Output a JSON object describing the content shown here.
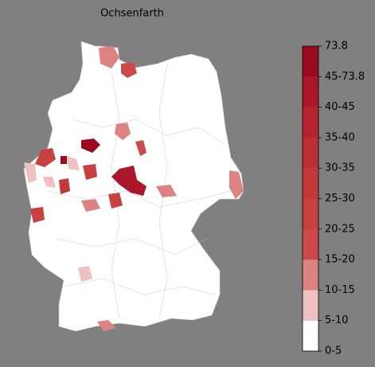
{
  "title": "Ochsenfarth",
  "colorbar": {
    "labels": [
      "0-5",
      "5-10",
      "10-15",
      "15-20",
      "20-25",
      "25-30",
      "30-35",
      "35-40",
      "40-45",
      "45-73.8",
      "73.8"
    ],
    "colors": [
      "#ffffff",
      "#efc0c0",
      "#dc8282",
      "#cd4a4a",
      "#c84040",
      "#c33838",
      "#bd2e33",
      "#b6232e",
      "#ab1628",
      "#9c0a1f"
    ]
  }
}
